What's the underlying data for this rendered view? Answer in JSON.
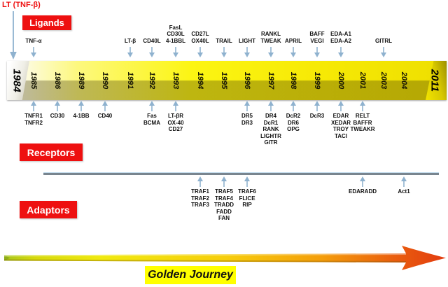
{
  "annotations": {
    "lt": "LT (TNF-β)"
  },
  "sections": {
    "ligands_label": "Ligands",
    "receptors_label": "Receptors",
    "adaptors_label": "Adaptors"
  },
  "timeline": {
    "start_year": "1984",
    "end_year": "2011",
    "years": [
      "1985",
      "1986",
      "1989",
      "1990",
      "1991",
      "1992",
      "1993",
      "1994",
      "1995",
      "1996",
      "1997",
      "1998",
      "1999",
      "2000",
      "2001",
      "2003",
      "2004"
    ]
  },
  "ligands": [
    {
      "year": "1985",
      "lines": [
        "TNF-α"
      ]
    },
    {
      "year": "1991",
      "lines": [
        "LT-β"
      ]
    },
    {
      "year": "1992",
      "lines": [
        "CD40L"
      ]
    },
    {
      "year": "1993",
      "lines": [
        "FasL",
        "CD30L",
        "4-1BBL"
      ]
    },
    {
      "year": "1994",
      "lines": [
        "CD27L",
        "OX40L"
      ]
    },
    {
      "year": "1995",
      "lines": [
        "TRAIL"
      ]
    },
    {
      "year": "1996",
      "lines": [
        "LIGHT"
      ]
    },
    {
      "year": "1997",
      "lines": [
        "RANKL",
        "TWEAK"
      ]
    },
    {
      "year": "1998",
      "lines": [
        "APRIL"
      ]
    },
    {
      "year": "1999",
      "lines": [
        "BAFF",
        "VEGI"
      ]
    },
    {
      "year": "2000",
      "lines": [
        "EDA-A1",
        "EDA-A2"
      ]
    },
    {
      "year": "2003",
      "lines": [
        "GITRL"
      ]
    }
  ],
  "receptors": [
    {
      "year": "1985",
      "lines": [
        "TNFR1",
        "TNFR2"
      ]
    },
    {
      "year": "1986",
      "lines": [
        "CD30"
      ]
    },
    {
      "year": "1989",
      "lines": [
        "4-1BB"
      ]
    },
    {
      "year": "1990",
      "lines": [
        "CD40"
      ]
    },
    {
      "year": "1992",
      "lines": [
        "Fas",
        "BCMA"
      ]
    },
    {
      "year": "1993",
      "lines": [
        "LT-βR",
        "OX-40",
        "CD27"
      ]
    },
    {
      "year": "1996",
      "lines": [
        "DR5",
        "DR3"
      ]
    },
    {
      "year": "1997",
      "lines": [
        "DR4",
        "DcR1",
        "RANK",
        "LIGHTR",
        "GITR"
      ]
    },
    {
      "year": "1998",
      "lines": [
        "DcR2",
        "DR6",
        "OPG"
      ]
    },
    {
      "year": "1999",
      "lines": [
        "DcR3"
      ]
    },
    {
      "year": "2000",
      "lines": [
        "EDAR",
        "XEDAR",
        "TROY",
        "TACI"
      ]
    },
    {
      "year": "2001",
      "lines": [
        "RELT",
        "BAFFR",
        "TWEAKR"
      ]
    }
  ],
  "adaptors": [
    {
      "year": "1994",
      "lines": [
        "TRAF1",
        "TRAF2",
        "TRAF3"
      ]
    },
    {
      "year": "1995",
      "lines": [
        "TRAF5",
        "TRAF4",
        "TRADD",
        "FADD",
        "FAN"
      ]
    },
    {
      "year": "1996",
      "lines": [
        "TRAF6",
        "FLICE",
        "RIP"
      ]
    },
    {
      "year": "2001",
      "lines": [
        "EDARADD"
      ]
    },
    {
      "year": "2004",
      "lines": [
        "Act1"
      ]
    }
  ],
  "footer": {
    "golden_journey": "Golden Journey"
  },
  "colors": {
    "section_red": "#ee1010",
    "arrow_blue": "#8fb2cf",
    "bar_yellow": "#fcf513",
    "bar_shadow_olive": "#b3a723",
    "highlight_yellow": "#ffff00",
    "journey_start_green": "#a8c61d",
    "journey_mid_yellow": "#f0e90f",
    "journey_end_red": "#e23c10",
    "adaptor_line_gray": "#79858f"
  }
}
